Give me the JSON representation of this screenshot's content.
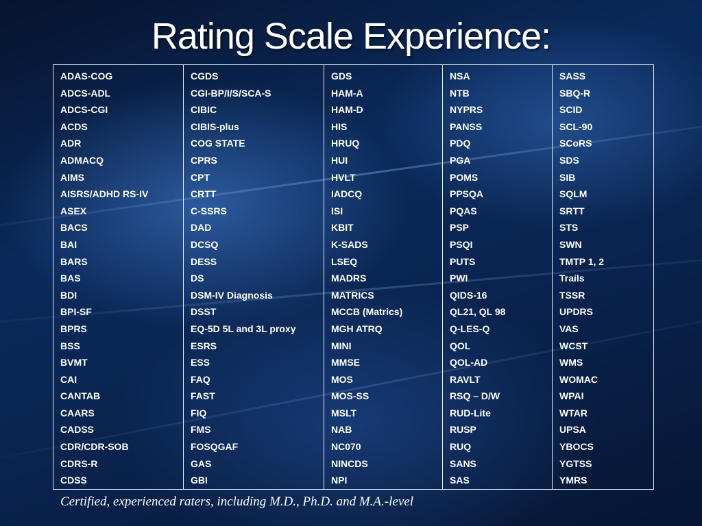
{
  "slide": {
    "title": "Rating Scale Experience:",
    "caption": "Certified, experienced raters, including M.D., Ph.D. and M.A.-level"
  },
  "table": {
    "columns": [
      [
        "ADAS-COG",
        "ADCS-ADL",
        "ADCS-CGI",
        "ACDS",
        "ADR",
        "ADMACQ",
        "AIMS",
        "AISRS/ADHD RS-IV",
        "ASEX",
        "BACS",
        "BAI",
        "BARS",
        "BAS",
        "BDI",
        "BPI-SF",
        "BPRS",
        "BSS",
        "BVMT",
        "CAI",
        "CANTAB",
        "CAARS",
        "CADSS",
        "CDR/CDR-SOB",
        "CDRS-R",
        "CDSS"
      ],
      [
        "CGDS",
        "CGI-BP/I/S/SCA-S",
        "CIBIC",
        "CIBIS-plus",
        "COG STATE",
        "CPRS",
        "CPT",
        "CRTT",
        "C-SSRS",
        "DAD",
        "DCSQ",
        "DESS",
        "DS",
        "DSM-IV  Diagnosis",
        "DSST",
        "EQ-5D 5L and 3L proxy",
        "ESRS",
        "ESS",
        "FAQ",
        "FAST",
        "FIQ",
        "FMS",
        "FOSQGAF",
        "GAS",
        "GBI"
      ],
      [
        "GDS",
        "HAM-A",
        "HAM-D",
        "HIS",
        "HRUQ",
        "HUI",
        "HVLT",
        "IADCQ",
        "ISI",
        "KBIT",
        "K-SADS",
        "LSEQ",
        "MADRS",
        "MATRICS",
        "MCCB (Matrics)",
        "MGH ATRQ",
        "MINI",
        "MMSE",
        "MOS",
        "MOS-SS",
        "MSLT",
        "NAB",
        "NC070",
        "NINCDS",
        "NPI"
      ],
      [
        "NSA",
        "NTB",
        "NYPRS",
        "PANSS",
        "PDQ",
        "PGA",
        "POMS",
        "PPSQA",
        "PQAS",
        "PSP",
        "PSQI",
        "PUTS",
        "PWI",
        "QIDS-16",
        "QL21, QL 98",
        "Q-LES-Q",
        "QOL",
        "QOL-AD",
        "RAVLT",
        "RSQ – D/W",
        "RUD-Lite",
        "RUSP",
        "RUQ",
        "SANS",
        "SAS"
      ],
      [
        "SASS",
        "SBQ-R",
        "SCID",
        "SCL-90",
        "SCoRS",
        "SDS",
        "SIB",
        "SQLM",
        "SRTT",
        "STS",
        "SWN",
        "TMTP 1, 2",
        "Trails",
        "TSSR",
        "UPDRS",
        "VAS",
        "WCST",
        "WMS",
        "WOMAC",
        "WPAI",
        "WTAR",
        "UPSA",
        "YBOCS",
        "YGTSS",
        "YMRS"
      ]
    ]
  }
}
